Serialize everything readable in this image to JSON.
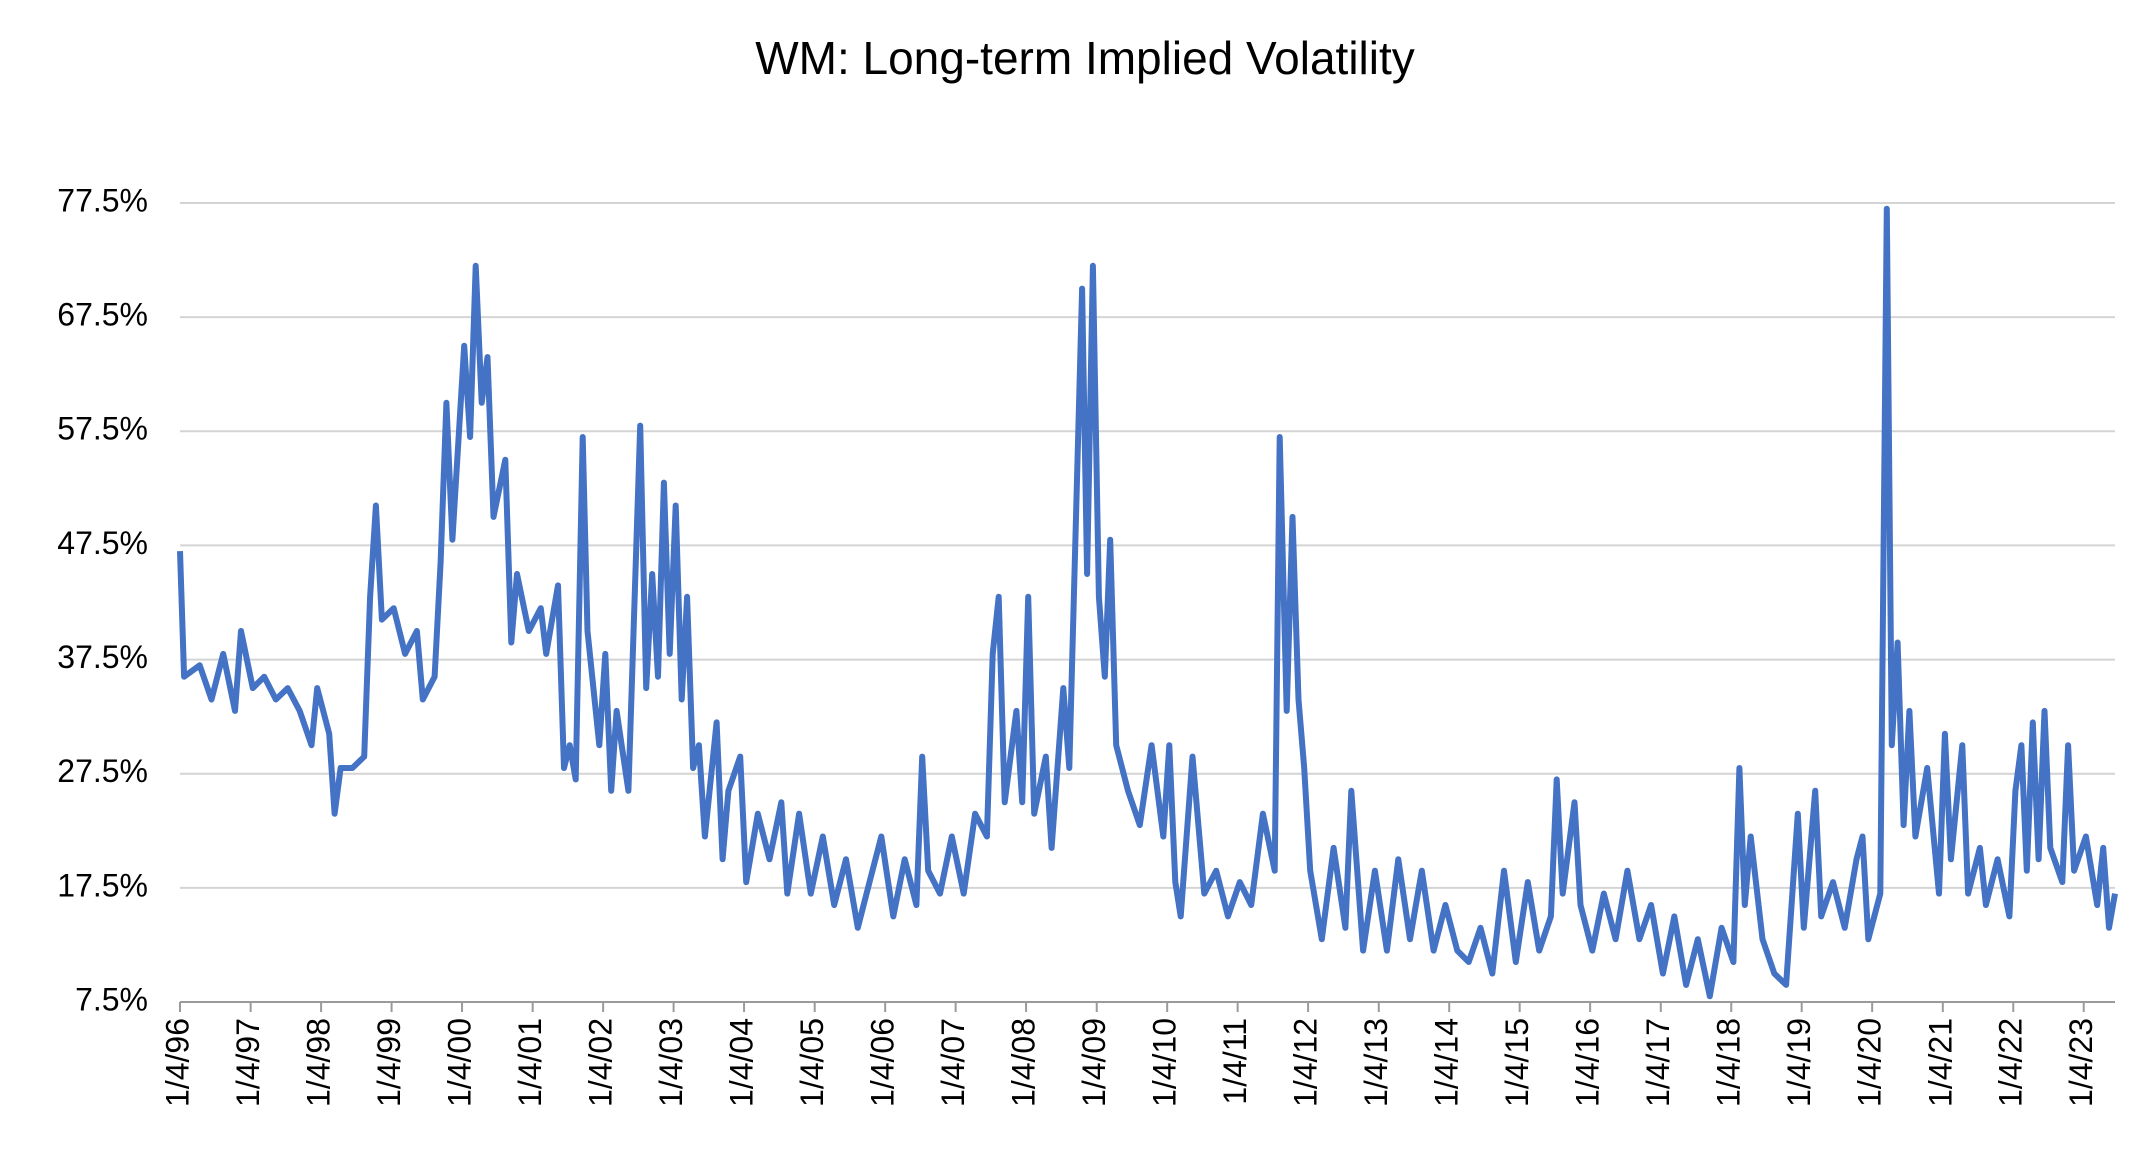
{
  "chart_data": {
    "type": "line",
    "title": "WM: Long-term Implied Volatility",
    "x": [
      "1996-01-04",
      "1996-01-25",
      "1996-04",
      "1996-06",
      "1996-08",
      "1996-10",
      "1996-11",
      "1997-01",
      "1997-03",
      "1997-05",
      "1997-07",
      "1997-09",
      "1997-11",
      "1997-12",
      "1998-01",
      "1998-02",
      "1998-03-15",
      "1998-04",
      "1998-06",
      "1998-08",
      "1998-09",
      "1998-10",
      "1998-11",
      "1999-01",
      "1999-03",
      "1999-05",
      "1999-06",
      "1999-08",
      "1999-09",
      "1999-10",
      "1999-11",
      "2000-01",
      "2000-02",
      "2000-03",
      "2000-04",
      "2000-05",
      "2000-06",
      "2000-08",
      "2000-09",
      "2000-10",
      "2000-12",
      "2001-02",
      "2001-03",
      "2001-05",
      "2001-06",
      "2001-07",
      "2001-08",
      "2001-09-20",
      "2001-10",
      "2001-12",
      "2002-01",
      "2002-02",
      "2002-03",
      "2002-05",
      "2002-07",
      "2002-08",
      "2002-09",
      "2002-10",
      "2002-11",
      "2002-12",
      "2003-01",
      "2003-02",
      "2003-03",
      "2003-04",
      "2003-05",
      "2003-06",
      "2003-08",
      "2003-09",
      "2003-10",
      "2003-12",
      "2004-01",
      "2004-03",
      "2004-05",
      "2004-07",
      "2004-08",
      "2004-10",
      "2004-12",
      "2005-02",
      "2005-04",
      "2005-06",
      "2005-08",
      "2005-10",
      "2005-12",
      "2006-02",
      "2006-04",
      "2006-06",
      "2006-07-15",
      "2006-08",
      "2006-10",
      "2006-12",
      "2007-02",
      "2007-04",
      "2007-06",
      "2007-07",
      "2007-08",
      "2007-09",
      "2007-11",
      "2007-12",
      "2008-01",
      "2008-02",
      "2008-04",
      "2008-05",
      "2008-07",
      "2008-08",
      "2008-10-20",
      "2008-11",
      "2008-12",
      "2009-01",
      "2009-02",
      "2009-03",
      "2009-04",
      "2009-06",
      "2009-08",
      "2009-10",
      "2009-12",
      "2010-01",
      "2010-02",
      "2010-03",
      "2010-05",
      "2010-07",
      "2010-09",
      "2010-11",
      "2011-01",
      "2011-03",
      "2011-05",
      "2011-07",
      "2011-08-10",
      "2011-09",
      "2011-10",
      "2011-11",
      "2011-12",
      "2012-01",
      "2012-03",
      "2012-05",
      "2012-07",
      "2012-08",
      "2012-10",
      "2012-12",
      "2013-02",
      "2013-04",
      "2013-06",
      "2013-08",
      "2013-10",
      "2013-12",
      "2014-02",
      "2014-04",
      "2014-06",
      "2014-08",
      "2014-10",
      "2014-12",
      "2015-02",
      "2015-04",
      "2015-06",
      "2015-07",
      "2015-08",
      "2015-10",
      "2015-11",
      "2016-01",
      "2016-03",
      "2016-05",
      "2016-07",
      "2016-09",
      "2016-11",
      "2017-01",
      "2017-03",
      "2017-05",
      "2017-07",
      "2017-09",
      "2017-11",
      "2018-01",
      "2018-02",
      "2018-03",
      "2018-04",
      "2018-06",
      "2018-08",
      "2018-10",
      "2018-12",
      "2019-01",
      "2019-03",
      "2019-04",
      "2019-06",
      "2019-08",
      "2019-10",
      "2019-11",
      "2019-12",
      "2020-02",
      "2020-03-20",
      "2020-04",
      "2020-05",
      "2020-06",
      "2020-07",
      "2020-08",
      "2020-10",
      "2020-12",
      "2021-01",
      "2021-02",
      "2021-04",
      "2021-05",
      "2021-07",
      "2021-08",
      "2021-10",
      "2021-12",
      "2022-01",
      "2022-02",
      "2022-03",
      "2022-04",
      "2022-05",
      "2022-06",
      "2022-07",
      "2022-09",
      "2022-10",
      "2022-11",
      "2023-01",
      "2023-03",
      "2023-04",
      "2023-05",
      "2023-06"
    ],
    "series": [
      {
        "color": "#4472c4",
        "values": [
          47,
          36,
          37,
          34,
          38,
          33,
          40,
          35,
          36,
          34,
          35,
          33,
          30,
          35,
          33,
          31,
          24,
          28,
          28,
          29,
          43,
          51,
          41,
          42,
          38,
          40,
          34,
          36,
          46,
          60,
          48,
          65,
          57,
          72,
          60,
          64,
          50,
          55,
          39,
          45,
          40,
          42,
          38,
          44,
          28,
          30,
          27,
          57,
          40,
          30,
          38,
          26,
          33,
          26,
          58,
          35,
          45,
          36,
          53,
          38,
          51,
          34,
          43,
          28,
          30,
          22,
          32,
          20,
          26,
          29,
          18,
          24,
          20,
          25,
          17,
          24,
          17,
          22,
          16,
          20,
          14,
          18,
          22,
          15,
          20,
          16,
          29,
          19,
          17,
          22,
          17,
          24,
          22,
          38,
          43,
          25,
          33,
          25,
          43,
          24,
          29,
          21,
          35,
          28,
          70,
          45,
          72,
          43,
          36,
          48,
          30,
          26,
          23,
          30,
          22,
          30,
          18,
          15,
          29,
          17,
          19,
          15,
          18,
          16,
          24,
          19,
          57,
          33,
          50,
          34,
          28,
          19,
          13,
          21,
          14,
          26,
          12,
          19,
          12,
          20,
          13,
          19,
          12,
          16,
          12,
          11,
          14,
          10,
          19,
          11,
          18,
          12,
          15,
          27,
          17,
          25,
          16,
          12,
          17,
          13,
          19,
          13,
          16,
          10,
          15,
          9,
          13,
          8,
          14,
          11,
          28,
          16,
          22,
          13,
          10,
          9,
          24,
          14,
          26,
          15,
          18,
          14,
          20,
          22,
          13,
          17,
          77,
          30,
          39,
          23,
          33,
          22,
          28,
          17,
          31,
          20,
          30,
          17,
          21,
          16,
          20,
          15,
          26,
          30,
          19,
          32,
          20,
          33,
          21,
          18,
          30,
          19,
          22,
          16,
          21,
          14,
          17
        ]
      }
    ],
    "xlim": [
      "1996-01-04",
      "2023-06-15"
    ],
    "xticks": [
      {
        "value": "1996-01-04",
        "label": "1/4/96"
      },
      {
        "value": "1997-01-04",
        "label": "1/4/97"
      },
      {
        "value": "1998-01-04",
        "label": "1/4/98"
      },
      {
        "value": "1999-01-04",
        "label": "1/4/99"
      },
      {
        "value": "2000-01-04",
        "label": "1/4/00"
      },
      {
        "value": "2001-01-04",
        "label": "1/4/01"
      },
      {
        "value": "2002-01-04",
        "label": "1/4/02"
      },
      {
        "value": "2003-01-04",
        "label": "1/4/03"
      },
      {
        "value": "2004-01-04",
        "label": "1/4/04"
      },
      {
        "value": "2005-01-04",
        "label": "1/4/05"
      },
      {
        "value": "2006-01-04",
        "label": "1/4/06"
      },
      {
        "value": "2007-01-04",
        "label": "1/4/07"
      },
      {
        "value": "2008-01-04",
        "label": "1/4/08"
      },
      {
        "value": "2009-01-04",
        "label": "1/4/09"
      },
      {
        "value": "2010-01-04",
        "label": "1/4/10"
      },
      {
        "value": "2011-01-04",
        "label": "1/4/11"
      },
      {
        "value": "2012-01-04",
        "label": "1/4/12"
      },
      {
        "value": "2013-01-04",
        "label": "1/4/13"
      },
      {
        "value": "2014-01-04",
        "label": "1/4/14"
      },
      {
        "value": "2015-01-04",
        "label": "1/4/15"
      },
      {
        "value": "2016-01-04",
        "label": "1/4/16"
      },
      {
        "value": "2017-01-04",
        "label": "1/4/17"
      },
      {
        "value": "2018-01-04",
        "label": "1/4/18"
      },
      {
        "value": "2019-01-04",
        "label": "1/4/19"
      },
      {
        "value": "2020-01-04",
        "label": "1/4/20"
      },
      {
        "value": "2021-01-04",
        "label": "1/4/21"
      },
      {
        "value": "2022-01-04",
        "label": "1/4/22"
      },
      {
        "value": "2023-01-04",
        "label": "1/4/23"
      }
    ],
    "ylim": [
      7.5,
      77.5
    ],
    "yticks": [
      {
        "value": 7.5,
        "label": "7.5%"
      },
      {
        "value": 17.5,
        "label": "17.5%"
      },
      {
        "value": 27.5,
        "label": "27.5%"
      },
      {
        "value": 37.5,
        "label": "37.5%"
      },
      {
        "value": 47.5,
        "label": "47.5%"
      },
      {
        "value": 57.5,
        "label": "57.5%"
      },
      {
        "value": 67.5,
        "label": "67.5%"
      },
      {
        "value": 77.5,
        "label": "77.5%"
      }
    ],
    "grid": true
  }
}
